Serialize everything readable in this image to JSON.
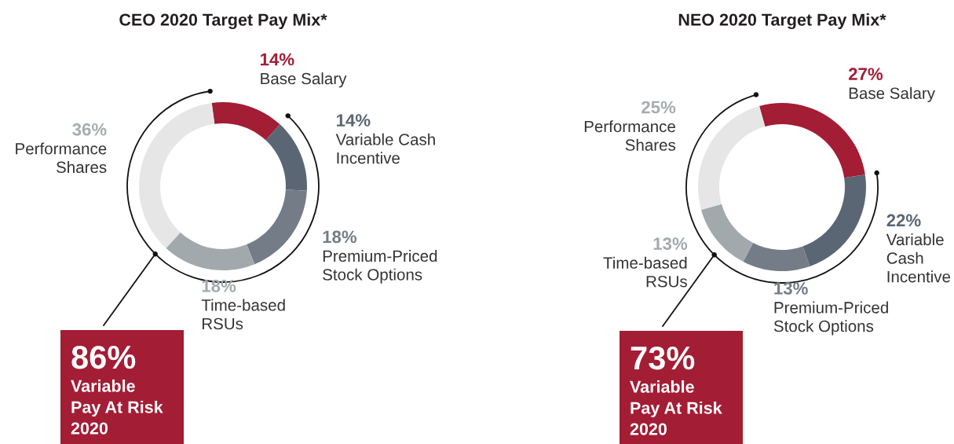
{
  "chart_data": [
    {
      "type": "donut",
      "title": "CEO 2020 Target Pay Mix*",
      "categories": [
        "Base Salary",
        "Variable Cash\nIncentive",
        "Premium-Priced\nStock Options",
        "Time-based\nRSUs",
        "Performance\nShares"
      ],
      "values": [
        14,
        14,
        18,
        18,
        36
      ],
      "colors": [
        "#a31d35",
        "#5a6674",
        "#747c87",
        "#a2a9ad",
        "#e6e6e6"
      ],
      "value_labels": [
        "14%",
        "14%",
        "18%",
        "18%",
        "36%"
      ],
      "annotations": [
        "86%",
        "Variable\nPay At Risk\n2020"
      ]
    },
    {
      "type": "donut",
      "title": "NEO 2020 Target Pay Mix*",
      "categories": [
        "Base Salary",
        "Variable\nCash\nIncentive",
        "Premium-Priced\nStock Options",
        "Time-based\nRSUs",
        "Performance\nShares"
      ],
      "values": [
        27,
        22,
        13,
        13,
        25
      ],
      "colors": [
        "#a31d35",
        "#5a6674",
        "#747c87",
        "#a2a9ad",
        "#e6e6e6"
      ],
      "value_labels": [
        "27%",
        "22%",
        "13%",
        "13%",
        "25%"
      ],
      "annotations": [
        "73%",
        "Variable\nPay At Risk\n2020"
      ]
    }
  ]
}
